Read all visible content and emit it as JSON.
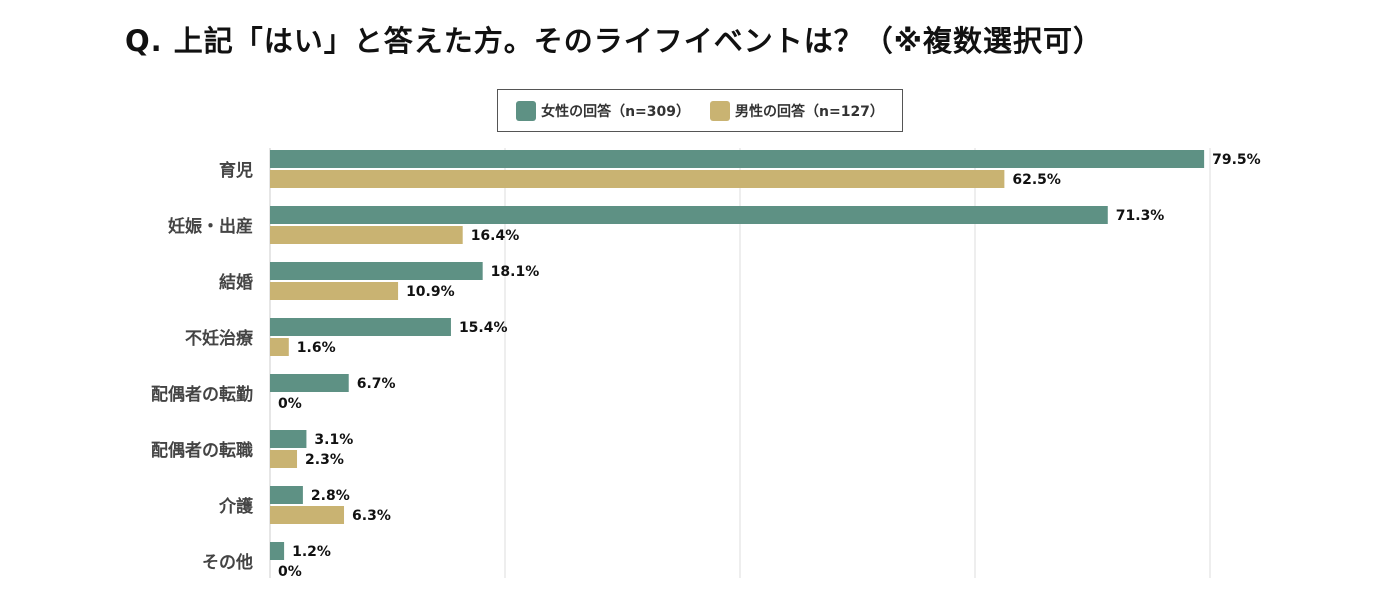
{
  "chart_data": {
    "type": "bar",
    "orientation": "horizontal",
    "title": "Q. 上記「はい」と答えた方。そのライフイベントは？（※複数選択可）",
    "categories": [
      "育児",
      "妊娠・出産",
      "結婚",
      "不妊治療",
      "配偶者の転勤",
      "配偶者の転職",
      "介護",
      "その他"
    ],
    "series": [
      {
        "name": "女性の回答（n=309）",
        "color": "#5E9184",
        "values": [
          79.5,
          71.3,
          18.1,
          15.4,
          6.7,
          3.1,
          2.8,
          1.2
        ],
        "labels": [
          "79.5%",
          "71.3%",
          "18.1%",
          "15.4%",
          "6.7%",
          "3.1%",
          "2.8%",
          "1.2%"
        ]
      },
      {
        "name": "男性の回答（n=127）",
        "color": "#C9B372",
        "values": [
          62.5,
          16.4,
          10.9,
          1.6,
          0,
          2.3,
          6.3,
          0
        ],
        "labels": [
          "62.5%",
          "16.4%",
          "10.9%",
          "1.6%",
          "0%",
          "2.3%",
          "6.3%",
          "0%"
        ]
      }
    ],
    "xlim": [
      0,
      80
    ],
    "gridlines": [
      20,
      40,
      60,
      80
    ],
    "grid": true,
    "legend": "top-center",
    "xlabel": "",
    "ylabel": ""
  }
}
